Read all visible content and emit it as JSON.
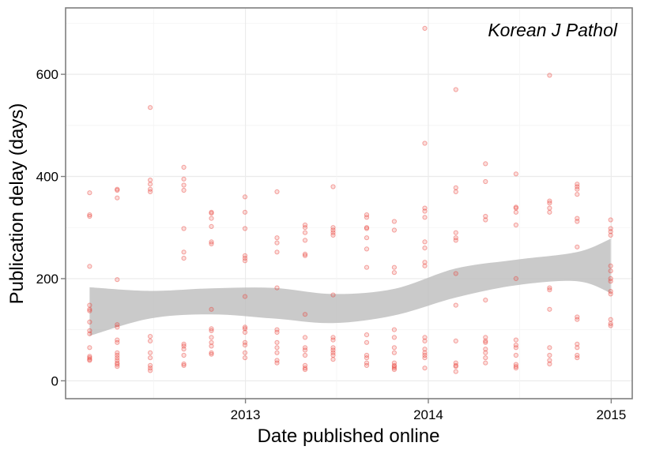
{
  "chart_data": {
    "type": "scatter",
    "title": "",
    "annotation": "Korean J Pathol",
    "xlabel": "Date published online",
    "ylabel": "Publication delay (days)",
    "xlim": [
      "2012-01-08",
      "2015-02-12"
    ],
    "ylim": [
      -35,
      730
    ],
    "x_ticks": [
      {
        "date": "2013-01-01",
        "label": "2013"
      },
      {
        "date": "2014-01-01",
        "label": "2014"
      },
      {
        "date": "2015-01-01",
        "label": "2015"
      }
    ],
    "y_ticks": [
      {
        "value": 0,
        "label": "0"
      },
      {
        "value": 200,
        "label": "200"
      },
      {
        "value": 400,
        "label": "400"
      },
      {
        "value": 600,
        "label": "600"
      }
    ],
    "grid": true,
    "point_color": "#e8413a",
    "band_color": "#bdbdbd",
    "series": [
      {
        "type": "points",
        "groups": [
          {
            "date": "2012-02-25",
            "y": [
              368,
              325,
              322,
              224,
              148,
              140,
              137,
              115,
              98,
              92,
              65,
              48,
              45,
              42,
              40
            ]
          },
          {
            "date": "2012-04-20",
            "y": [
              375,
              373,
              358,
              198,
              110,
              105,
              80,
              75,
              55,
              50,
              45,
              40,
              35,
              32,
              28
            ]
          },
          {
            "date": "2012-06-25",
            "y": [
              535,
              393,
              385,
              375,
              370,
              87,
              78,
              55,
              45,
              30,
              25,
              20
            ]
          },
          {
            "date": "2012-08-31",
            "y": [
              418,
              395,
              383,
              373,
              298,
              252,
              240,
              72,
              68,
              62,
              50,
              33,
              30
            ]
          },
          {
            "date": "2012-10-25",
            "y": [
              330,
              328,
              318,
              302,
              272,
              268,
              140,
              102,
              98,
              85,
              75,
              68,
              55,
              52
            ]
          },
          {
            "date": "2012-12-31",
            "y": [
              360,
              330,
              298,
              245,
              240,
              235,
              165,
              105,
              102,
              95,
              75,
              70,
              55,
              45
            ]
          },
          {
            "date": "2013-03-05",
            "y": [
              370,
              280,
              270,
              252,
              182,
              100,
              95,
              75,
              65,
              55,
              40,
              35
            ]
          },
          {
            "date": "2013-04-30",
            "y": [
              305,
              300,
              290,
              275,
              248,
              245,
              130,
              85,
              65,
              60,
              50,
              30,
              25,
              22
            ]
          },
          {
            "date": "2013-06-25",
            "y": [
              380,
              300,
              295,
              290,
              285,
              168,
              85,
              80,
              65,
              60,
              55,
              50,
              42
            ]
          },
          {
            "date": "2013-08-31",
            "y": [
              325,
              320,
              300,
              298,
              280,
              258,
              222,
              90,
              75,
              50,
              45,
              35,
              30
            ]
          },
          {
            "date": "2013-10-25",
            "y": [
              312,
              295,
              222,
              212,
              100,
              85,
              65,
              55,
              35,
              30,
              28,
              25,
              22
            ]
          },
          {
            "date": "2013-12-25",
            "y": [
              690,
              465,
              338,
              332,
              320,
              272,
              260,
              232,
              225,
              85,
              78,
              62,
              55,
              50,
              45,
              25
            ]
          },
          {
            "date": "2014-02-25",
            "y": [
              570,
              378,
              370,
              290,
              280,
              275,
              210,
              148,
              78,
              35,
              30,
              28,
              18
            ]
          },
          {
            "date": "2014-04-25",
            "y": [
              425,
              390,
              322,
              315,
              158,
              85,
              78,
              75,
              62,
              55,
              45,
              35
            ]
          },
          {
            "date": "2014-06-25",
            "y": [
              405,
              340,
              338,
              330,
              305,
              200,
              80,
              70,
              65,
              50,
              32,
              28,
              25
            ]
          },
          {
            "date": "2014-08-31",
            "y": [
              598,
              352,
              348,
              338,
              330,
              182,
              178,
              140,
              65,
              50,
              40,
              33
            ]
          },
          {
            "date": "2014-10-25",
            "y": [
              385,
              380,
              375,
              365,
              318,
              312,
              262,
              125,
              120,
              72,
              65,
              50,
              45
            ]
          },
          {
            "date": "2014-12-31",
            "y": [
              315,
              298,
              292,
              285,
              225,
              215,
              200,
              195,
              175,
              170,
              120,
              112,
              108
            ]
          }
        ]
      },
      {
        "type": "smooth-band",
        "x": [
          "2012-02-25",
          "2012-06-25",
          "2012-10-25",
          "2013-02-25",
          "2013-06-25",
          "2013-10-25",
          "2014-02-25",
          "2014-06-25",
          "2014-10-25",
          "2014-12-31"
        ],
        "upper": [
          183,
          176,
          181,
          182,
          170,
          180,
          220,
          237,
          252,
          278
        ],
        "lower": [
          88,
          122,
          130,
          122,
          113,
          128,
          163,
          187,
          195,
          172
        ]
      }
    ]
  }
}
